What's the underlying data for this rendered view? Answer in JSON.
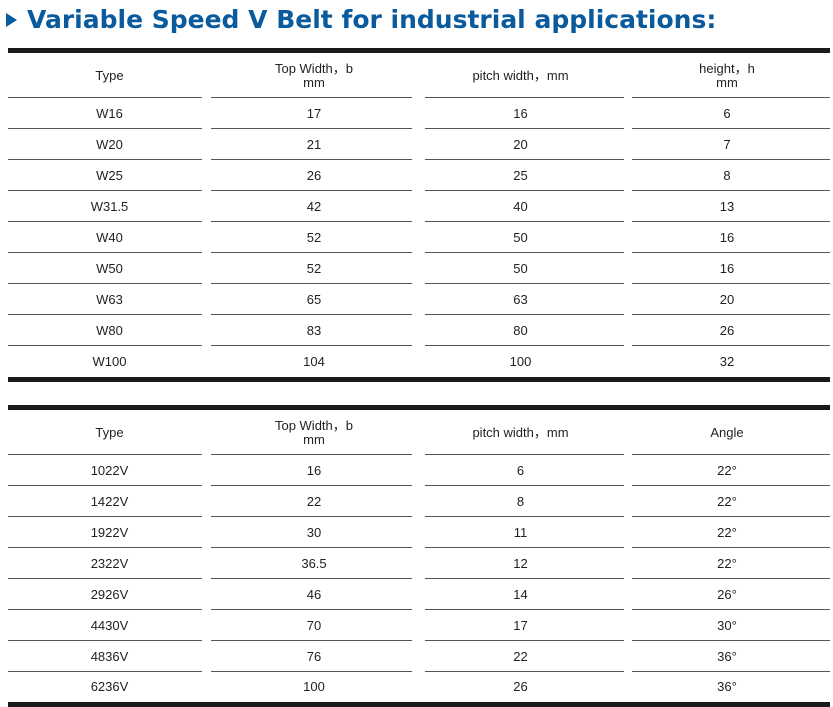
{
  "title": "Variable Speed V Belt for industrial applications:",
  "table1": {
    "headers": [
      {
        "l1": "Type",
        "l2": ""
      },
      {
        "l1": "Top Width，b",
        "l2": "mm"
      },
      {
        "l1": "pitch width，mm",
        "l2": ""
      },
      {
        "l1": "height，h",
        "l2": "mm"
      }
    ],
    "rows": [
      [
        "W16",
        "17",
        "16",
        "6"
      ],
      [
        "W20",
        "21",
        "20",
        "7"
      ],
      [
        "W25",
        "26",
        "25",
        "8"
      ],
      [
        "W31.5",
        "42",
        "40",
        "13"
      ],
      [
        "W40",
        "52",
        "50",
        "16"
      ],
      [
        "W50",
        "52",
        "50",
        "16"
      ],
      [
        "W63",
        "65",
        "63",
        "20"
      ],
      [
        "W80",
        "83",
        "80",
        "26"
      ],
      [
        "W100",
        "104",
        "100",
        "32"
      ]
    ]
  },
  "table2": {
    "headers": [
      {
        "l1": "Type",
        "l2": ""
      },
      {
        "l1": "Top Width，b",
        "l2": "mm"
      },
      {
        "l1": "pitch width，mm",
        "l2": ""
      },
      {
        "l1": "Angle",
        "l2": ""
      }
    ],
    "rows": [
      [
        "1022V",
        "16",
        "6",
        "22°"
      ],
      [
        "1422V",
        "22",
        "8",
        "22°"
      ],
      [
        "1922V",
        "30",
        "11",
        "22°"
      ],
      [
        "2322V",
        "36.5",
        "12",
        "22°"
      ],
      [
        "2926V",
        "46",
        "14",
        "26°"
      ],
      [
        "4430V",
        "70",
        "17",
        "30°"
      ],
      [
        "4836V",
        "76",
        "22",
        "36°"
      ],
      [
        "6236V",
        "100",
        "26",
        "36°"
      ]
    ]
  }
}
